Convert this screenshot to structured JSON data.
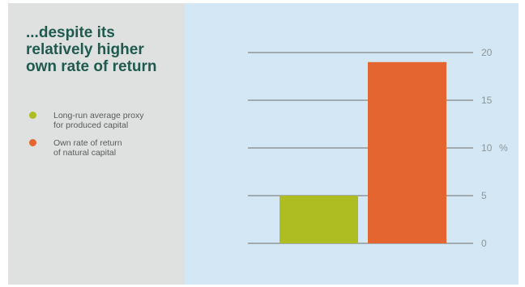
{
  "title": "...despite its\nrelatively higher\nown rate of return",
  "legend": [
    {
      "label": "Long-run average proxy\nfor produced capital",
      "color": "#aebd21"
    },
    {
      "label": "Own rate of return\nof natural capital",
      "color": "#e4652f"
    }
  ],
  "colors": {
    "left_panel": "#dfe1e1",
    "right_panel": "#d3e8f4",
    "title": "#1f5a4e",
    "gridline": "#8f9598"
  },
  "chart_data": {
    "type": "bar",
    "categories": [
      "Long-run average proxy for produced capital",
      "Own rate of return of natural capital"
    ],
    "values": [
      5,
      19
    ],
    "colors": [
      "#aebd21",
      "#e4652f"
    ],
    "ylim": [
      0,
      20
    ],
    "yticks": [
      0,
      5,
      10,
      15,
      20
    ],
    "yunit": "%",
    "yaxis_position": "right",
    "grid": true
  }
}
